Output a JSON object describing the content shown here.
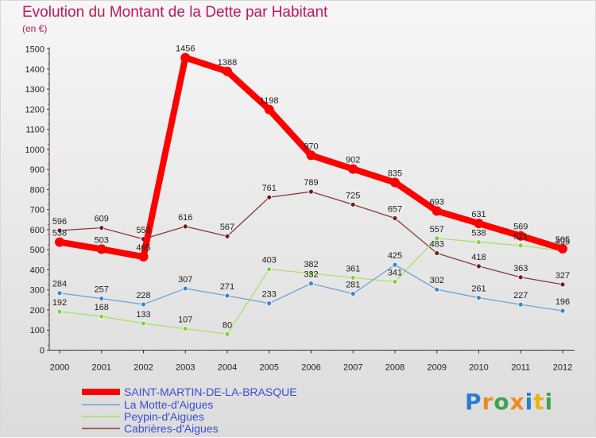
{
  "title": "Evolution du Montant de la Dette par Habitant",
  "unit_label": "(en €)",
  "logo": {
    "text": "Proxiti",
    "colors": [
      "#2e7bd6",
      "#f08a1c",
      "#3fa34d",
      "#f08a1c",
      "#2e7bd6",
      "#e8b21a",
      "#3fa34d"
    ]
  },
  "chart_data": {
    "type": "line",
    "title": "Evolution du Montant de la Dette par Habitant",
    "ylabel": "(en €)",
    "xlabel": "",
    "ylim": [
      0,
      1500
    ],
    "yticks": [
      0,
      100,
      200,
      300,
      400,
      500,
      600,
      700,
      800,
      900,
      1000,
      1100,
      1200,
      1300,
      1400,
      1500
    ],
    "x": [
      "2000",
      "2001",
      "2002",
      "2003",
      "2004",
      "2005",
      "2006",
      "2007",
      "2008",
      "2009",
      "2010",
      "2011",
      "2012"
    ],
    "grid": false,
    "legend_position": "bottom-left",
    "series": [
      {
        "name": "SAINT-MARTIN-DE-LA-BRASQUE",
        "color": "#ff0000",
        "marker": "#ff0000",
        "values": [
          538,
          503,
          465,
          1456,
          1388,
          1198,
          970,
          902,
          835,
          693,
          631,
          569,
          505
        ]
      },
      {
        "name": "La Motte-d'Aigues",
        "color": "#6fa3d6",
        "marker": "#3a86d0",
        "values": [
          284,
          257,
          228,
          307,
          271,
          233,
          332,
          281,
          425,
          302,
          261,
          227,
          196
        ]
      },
      {
        "name": "Peypin-d'Aigues",
        "color": "#a8e06c",
        "marker": "#7fd13b",
        "values": [
          192,
          168,
          133,
          107,
          80,
          403,
          382,
          361,
          341,
          557,
          538,
          521,
          495
        ]
      },
      {
        "name": "Cabrières-d'Aigues",
        "color": "#8b3a3a",
        "marker": "#6e1f1f",
        "values": [
          596,
          609,
          553,
          616,
          567,
          761,
          789,
          725,
          657,
          483,
          418,
          363,
          327
        ]
      }
    ]
  }
}
